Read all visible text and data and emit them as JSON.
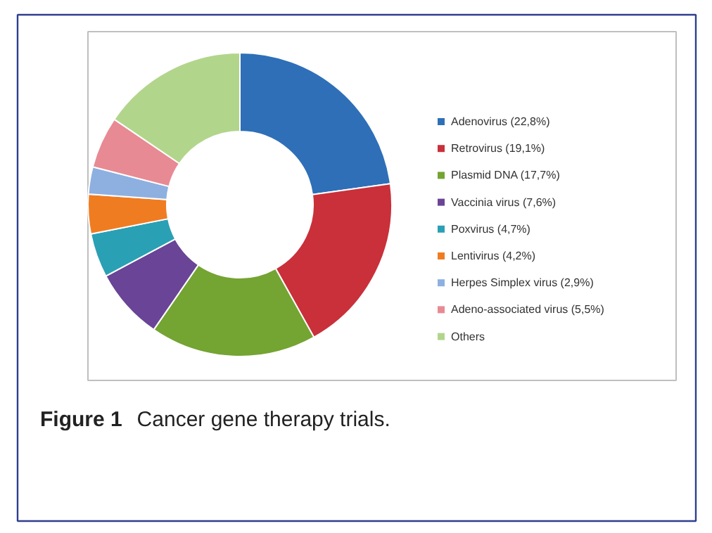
{
  "chart_data": {
    "type": "donut",
    "title": "Figure 1 Cancer gene therapy trials.",
    "categories": [
      "Adenovirus",
      "Retrovirus",
      "Plasmid DNA",
      "Vaccinia virus",
      "Poxvirus",
      "Lentivirus",
      "Herpes Simplex virus",
      "Adeno-associated  virus",
      "Others"
    ],
    "values": [
      22.8,
      19.1,
      17.7,
      7.6,
      4.7,
      4.2,
      2.9,
      5.5,
      15.5
    ],
    "value_labels": [
      "(22,8%)",
      "(19,1%)",
      "(17,7%)",
      "(7,6%)",
      "(4,7%)",
      "(4,2%)",
      "(2,9%)",
      "(5,5%)",
      null
    ],
    "colors": [
      "#2e6fb8",
      "#c9303a",
      "#74a432",
      "#6a4496",
      "#2aa0b5",
      "#f07c22",
      "#8db0e0",
      "#e88a93",
      "#b2d58c"
    ],
    "legend": "right"
  }
}
